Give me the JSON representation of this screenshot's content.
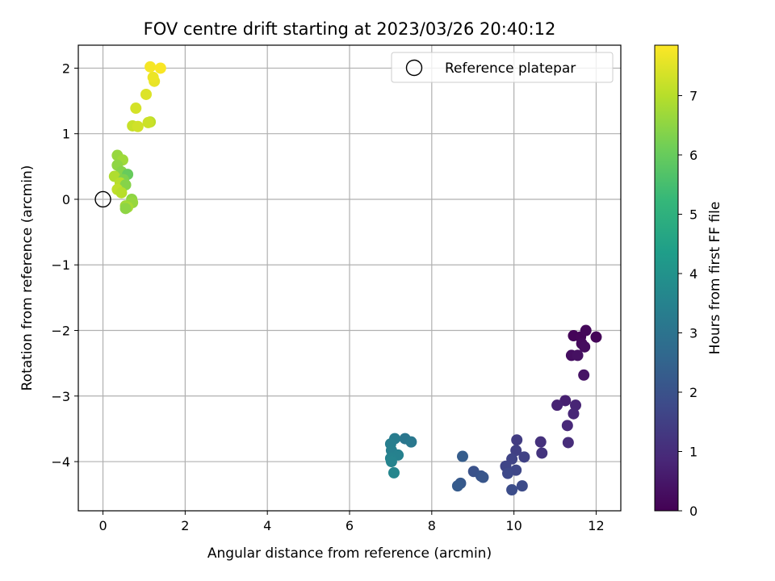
{
  "chart_data": {
    "type": "scatter",
    "title": "FOV centre drift starting at 2023/03/26 20:40:12",
    "xlabel": "Angular distance from reference (arcmin)",
    "ylabel": "Rotation from reference (arcmin)",
    "xlim": [
      -0.6,
      12.6
    ],
    "ylim": [
      -4.75,
      2.35
    ],
    "xticks": [
      0,
      2,
      4,
      6,
      8,
      10,
      12
    ],
    "yticks": [
      -4,
      -3,
      -2,
      -1,
      0,
      1,
      2
    ],
    "grid": true,
    "legend": {
      "position": "top-right",
      "entries": [
        "Reference platepar"
      ]
    },
    "reference_point": {
      "x": 0,
      "y": 0,
      "label": "Reference platepar"
    },
    "colorbar": {
      "label": "Hours from first FF file",
      "colormap": "viridis",
      "range": [
        0,
        7.85
      ],
      "ticks": [
        0,
        1,
        2,
        3,
        4,
        5,
        6,
        7
      ]
    },
    "points": [
      {
        "x": 11.45,
        "y": -2.08,
        "c": 0.1
      },
      {
        "x": 11.62,
        "y": -2.1,
        "c": 0.12
      },
      {
        "x": 11.75,
        "y": -2.0,
        "c": 0.15
      },
      {
        "x": 12.0,
        "y": -2.1,
        "c": 0.1
      },
      {
        "x": 11.65,
        "y": -2.2,
        "c": 0.2
      },
      {
        "x": 11.72,
        "y": -2.25,
        "c": 0.25
      },
      {
        "x": 11.4,
        "y": -2.38,
        "c": 0.3
      },
      {
        "x": 11.55,
        "y": -2.38,
        "c": 0.35
      },
      {
        "x": 11.7,
        "y": -2.68,
        "c": 0.4
      },
      {
        "x": 11.25,
        "y": -3.07,
        "c": 0.7
      },
      {
        "x": 11.05,
        "y": -3.14,
        "c": 0.75
      },
      {
        "x": 11.5,
        "y": -3.14,
        "c": 0.8
      },
      {
        "x": 11.45,
        "y": -3.27,
        "c": 0.85
      },
      {
        "x": 11.3,
        "y": -3.45,
        "c": 0.9
      },
      {
        "x": 11.32,
        "y": -3.71,
        "c": 1.0
      },
      {
        "x": 10.65,
        "y": -3.7,
        "c": 1.1
      },
      {
        "x": 10.68,
        "y": -3.87,
        "c": 1.2
      },
      {
        "x": 10.07,
        "y": -3.67,
        "c": 1.4
      },
      {
        "x": 10.05,
        "y": -3.83,
        "c": 1.5
      },
      {
        "x": 10.25,
        "y": -3.93,
        "c": 1.55
      },
      {
        "x": 9.95,
        "y": -3.96,
        "c": 1.6
      },
      {
        "x": 9.8,
        "y": -4.07,
        "c": 1.65
      },
      {
        "x": 10.05,
        "y": -4.13,
        "c": 1.7
      },
      {
        "x": 9.85,
        "y": -4.18,
        "c": 1.75
      },
      {
        "x": 10.2,
        "y": -4.37,
        "c": 1.8
      },
      {
        "x": 9.95,
        "y": -4.43,
        "c": 1.85
      },
      {
        "x": 9.02,
        "y": -4.15,
        "c": 2.0
      },
      {
        "x": 9.2,
        "y": -4.22,
        "c": 2.05
      },
      {
        "x": 9.25,
        "y": -4.24,
        "c": 2.1
      },
      {
        "x": 8.75,
        "y": -3.92,
        "c": 2.3
      },
      {
        "x": 8.7,
        "y": -4.33,
        "c": 2.2
      },
      {
        "x": 8.63,
        "y": -4.37,
        "c": 2.25
      },
      {
        "x": 7.35,
        "y": -3.65,
        "c": 3.1
      },
      {
        "x": 7.5,
        "y": -3.7,
        "c": 3.15
      },
      {
        "x": 7.1,
        "y": -3.65,
        "c": 3.3
      },
      {
        "x": 7.0,
        "y": -3.73,
        "c": 3.35
      },
      {
        "x": 7.02,
        "y": -3.83,
        "c": 3.4
      },
      {
        "x": 7.18,
        "y": -3.9,
        "c": 3.45
      },
      {
        "x": 7.0,
        "y": -3.95,
        "c": 3.5
      },
      {
        "x": 7.02,
        "y": -4.0,
        "c": 3.55
      },
      {
        "x": 7.08,
        "y": -4.17,
        "c": 3.6
      },
      {
        "x": 0.35,
        "y": 0.67,
        "c": 6.6
      },
      {
        "x": 0.48,
        "y": 0.6,
        "c": 6.7
      },
      {
        "x": 0.35,
        "y": 0.52,
        "c": 6.5
      },
      {
        "x": 0.45,
        "y": 0.42,
        "c": 6.4
      },
      {
        "x": 0.6,
        "y": 0.38,
        "c": 6.0
      },
      {
        "x": 0.28,
        "y": 0.35,
        "c": 6.9
      },
      {
        "x": 0.5,
        "y": 0.3,
        "c": 6.3
      },
      {
        "x": 0.42,
        "y": 0.25,
        "c": 7.0
      },
      {
        "x": 0.55,
        "y": 0.22,
        "c": 6.4
      },
      {
        "x": 0.35,
        "y": 0.15,
        "c": 7.1
      },
      {
        "x": 0.45,
        "y": 0.1,
        "c": 7.0
      },
      {
        "x": 0.7,
        "y": 0.0,
        "c": 6.5
      },
      {
        "x": 0.72,
        "y": -0.05,
        "c": 6.6
      },
      {
        "x": 0.55,
        "y": -0.1,
        "c": 6.7
      },
      {
        "x": 0.6,
        "y": -0.12,
        "c": 6.8
      },
      {
        "x": 0.55,
        "y": -0.14,
        "c": 6.5
      },
      {
        "x": 0.72,
        "y": 1.12,
        "c": 7.2
      },
      {
        "x": 0.85,
        "y": 1.11,
        "c": 7.3
      },
      {
        "x": 1.15,
        "y": 1.18,
        "c": 7.1
      },
      {
        "x": 1.1,
        "y": 1.17,
        "c": 7.25
      },
      {
        "x": 0.8,
        "y": 1.39,
        "c": 7.35
      },
      {
        "x": 1.05,
        "y": 1.6,
        "c": 7.45
      },
      {
        "x": 1.25,
        "y": 1.8,
        "c": 7.6
      },
      {
        "x": 1.22,
        "y": 1.86,
        "c": 7.65
      },
      {
        "x": 1.15,
        "y": 2.02,
        "c": 7.75
      },
      {
        "x": 1.4,
        "y": 2.0,
        "c": 7.8
      }
    ]
  }
}
